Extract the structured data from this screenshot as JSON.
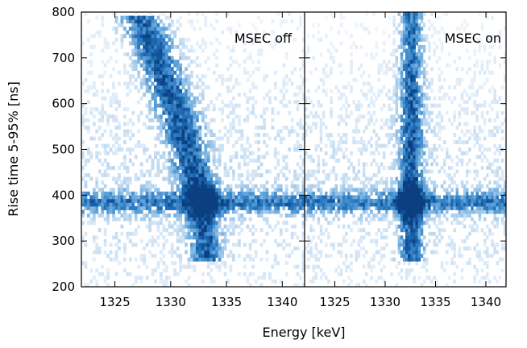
{
  "chart_data": {
    "type": "heatmap",
    "shared_y_axis": true,
    "ylabel": "Rise time 5-95% [ns]",
    "xlabel": "Energy [keV]",
    "ylim": [
      200,
      800
    ],
    "yticks": [
      200,
      300,
      400,
      500,
      600,
      700,
      800
    ],
    "xlim": [
      1322,
      1342
    ],
    "xticks": [
      1325,
      1330,
      1335,
      1340
    ],
    "colormap": [
      "#ffffff",
      "#d7e7f6",
      "#9cc6ea",
      "#4d97d3",
      "#1c68b2",
      "#0b3f80"
    ],
    "panels": [
      {
        "label": "MSEC off",
        "label_position": "top-right",
        "description_of_density": {
          "horizontal_band_y": 385,
          "peak": {
            "energy": 1333.0,
            "rise_time": 390
          },
          "diagonal_band": [
            {
              "energy": 1327.5,
              "rise_time": 750
            },
            {
              "energy": 1330.0,
              "rise_time": 620
            },
            {
              "energy": 1331.8,
              "rise_time": 510
            },
            {
              "energy": 1333.0,
              "rise_time": 390
            },
            {
              "energy": 1333.3,
              "rise_time": 270
            }
          ]
        }
      },
      {
        "label": "MSEC on",
        "label_position": "top-right",
        "description_of_density": {
          "horizontal_band_y": 385,
          "peak": {
            "energy": 1332.5,
            "rise_time": 390
          },
          "vertical_band": {
            "energy": 1332.6,
            "rise_time_range": [
              260,
              800
            ]
          }
        }
      }
    ]
  }
}
